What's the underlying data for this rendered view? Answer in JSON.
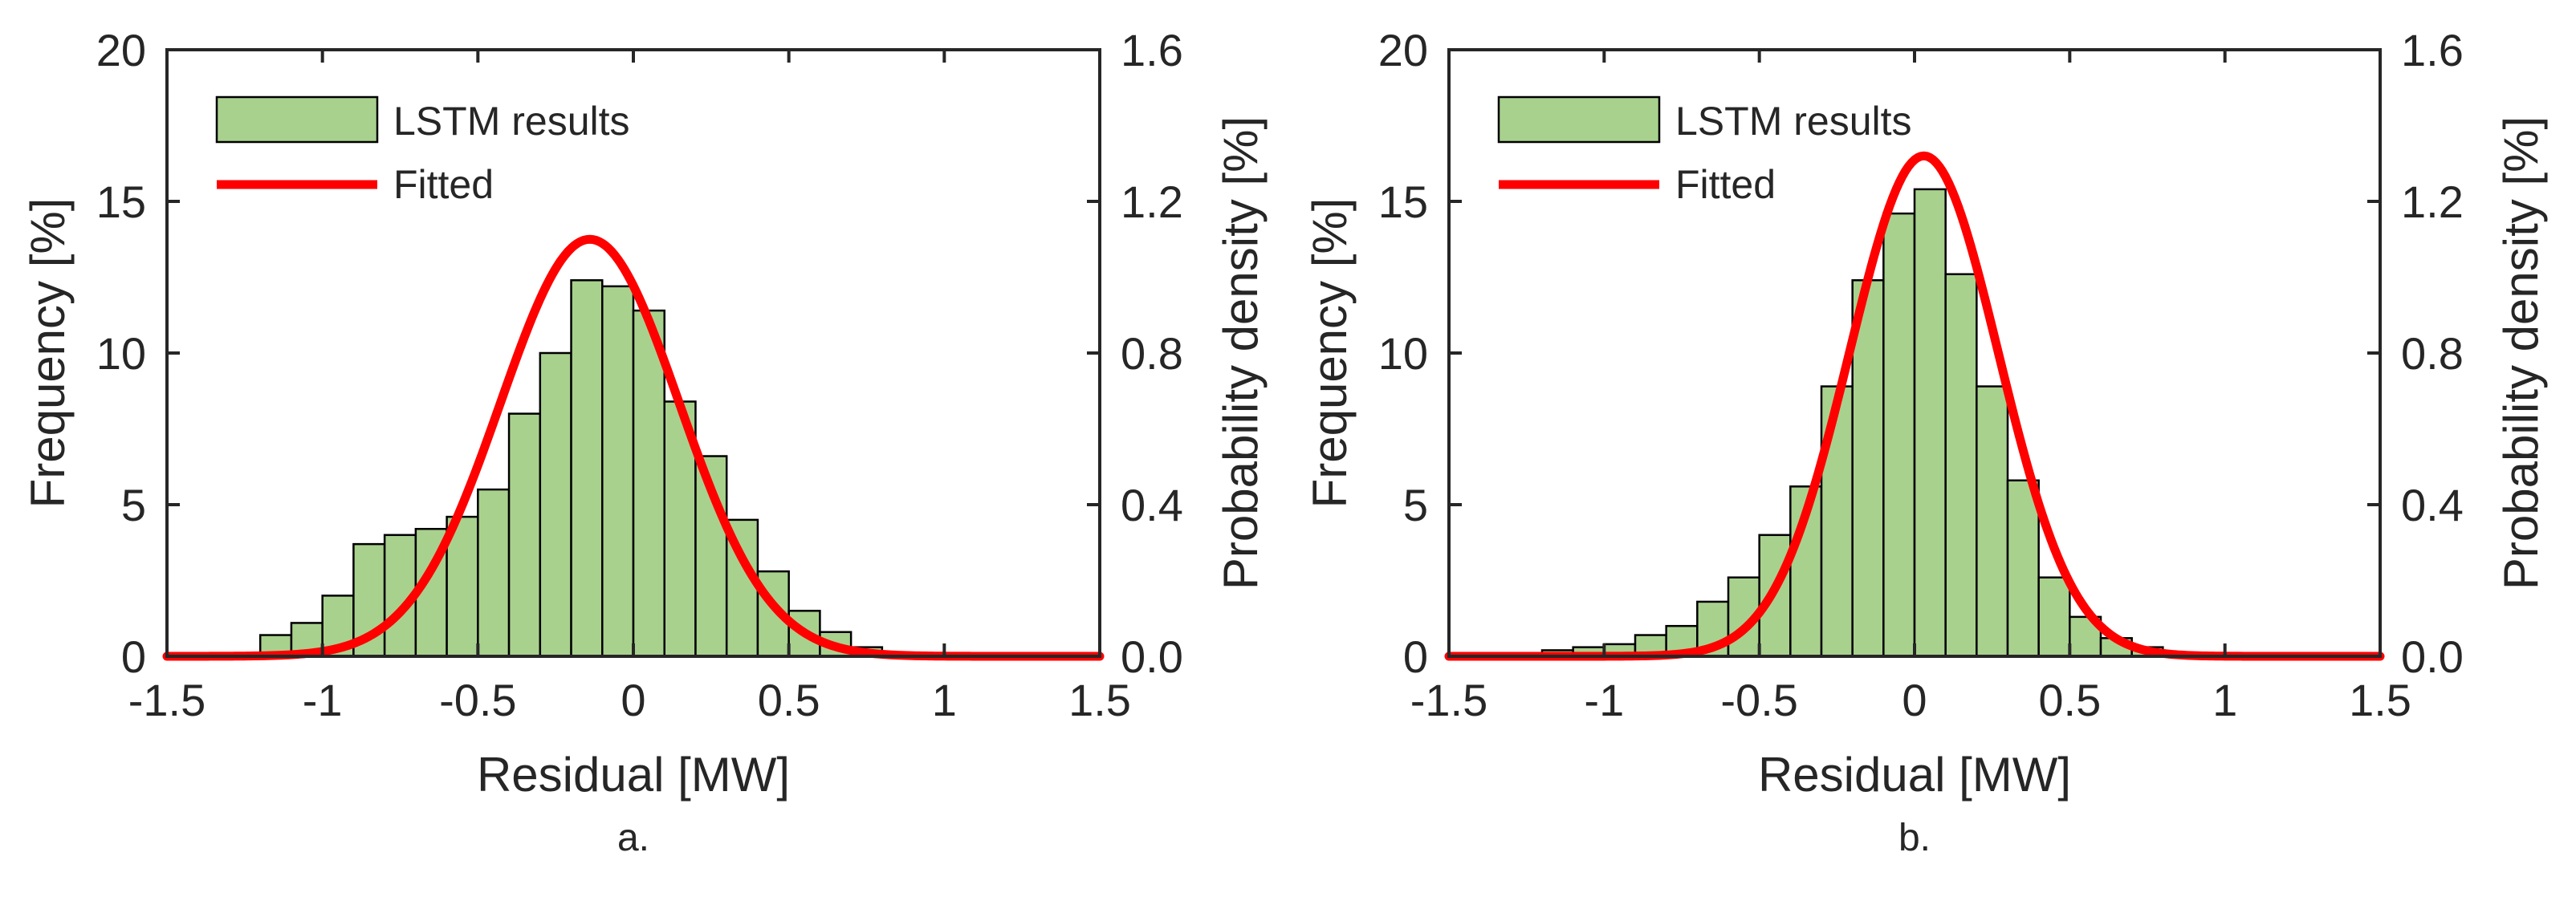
{
  "chart_data": [
    {
      "type": "bar",
      "panel_label": "a.",
      "xlabel": "Residual [MW]",
      "ylabel_left": "Frequency [%]",
      "ylabel_right": "Probability density [%]",
      "xlim": [
        -1.5,
        1.5
      ],
      "ylim_left": [
        0,
        20
      ],
      "ylim_right": [
        0,
        1.6
      ],
      "xticks": [
        "-1.5",
        "-1",
        "-0.5",
        "0",
        "0.5",
        "1",
        "1.5"
      ],
      "yticks_left": [
        "0",
        "5",
        "10",
        "15",
        "20"
      ],
      "yticks_right": [
        "0.0",
        "0.4",
        "0.8",
        "1.2",
        "1.6"
      ],
      "legend_position": "top-left",
      "legend": [
        "LSTM results",
        "Fitted"
      ],
      "colors": {
        "bar_fill": "#a9d18e",
        "bar_edge": "#000000",
        "fit_line": "#ff0000"
      },
      "histogram": {
        "bin_width": 0.1,
        "bin_centers": [
          -1.15,
          -1.05,
          -0.95,
          -0.85,
          -0.75,
          -0.65,
          -0.55,
          -0.45,
          -0.35,
          -0.25,
          -0.15,
          -0.05,
          0.05,
          0.15,
          0.25,
          0.35,
          0.45,
          0.55,
          0.65,
          0.75,
          0.85
        ],
        "frequency_percent": [
          0.7,
          1.1,
          2.0,
          3.7,
          4.0,
          4.2,
          4.6,
          5.5,
          8.0,
          10.0,
          12.4,
          12.2,
          11.4,
          8.4,
          6.6,
          4.5,
          2.8,
          1.5,
          0.8,
          0.3,
          0.1
        ]
      },
      "fitted_normal": {
        "mean": -0.14,
        "std": 0.288,
        "peak_density": 1.1,
        "y_axis": "right"
      }
    },
    {
      "type": "bar",
      "panel_label": "b.",
      "xlabel": "Residual [MW]",
      "ylabel_left": "Frequency [%]",
      "ylabel_right": "Probability density [%]",
      "xlim": [
        -1.5,
        1.5
      ],
      "ylim_left": [
        0,
        20
      ],
      "ylim_right": [
        0,
        1.6
      ],
      "xticks": [
        "-1.5",
        "-1",
        "-0.5",
        "0",
        "0.5",
        "1",
        "1.5"
      ],
      "yticks_left": [
        "0",
        "5",
        "10",
        "15",
        "20"
      ],
      "yticks_right": [
        "0.0",
        "0.4",
        "0.8",
        "1.2",
        "1.6"
      ],
      "legend_position": "top-left",
      "legend": [
        "LSTM results",
        "Fitted"
      ],
      "colors": {
        "bar_fill": "#a9d18e",
        "bar_edge": "#000000",
        "fit_line": "#ff0000"
      },
      "histogram": {
        "bin_width": 0.1,
        "bin_centers": [
          -1.15,
          -1.05,
          -0.95,
          -0.85,
          -0.75,
          -0.65,
          -0.55,
          -0.45,
          -0.35,
          -0.25,
          -0.15,
          -0.05,
          0.05,
          0.15,
          0.25,
          0.35,
          0.45,
          0.55,
          0.65,
          0.75,
          0.85
        ],
        "frequency_percent": [
          0.2,
          0.3,
          0.4,
          0.7,
          1.0,
          1.8,
          2.6,
          4.0,
          5.6,
          8.9,
          12.4,
          14.6,
          15.4,
          12.6,
          8.9,
          5.8,
          2.6,
          1.3,
          0.6,
          0.3,
          0.1
        ]
      },
      "fitted_normal": {
        "mean": 0.03,
        "std": 0.24,
        "peak_density": 1.32,
        "y_axis": "right"
      }
    }
  ]
}
